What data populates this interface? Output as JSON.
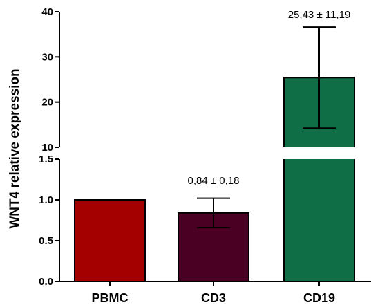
{
  "chart_data": {
    "type": "bar",
    "title": "",
    "xlabel": "",
    "ylabel": "WNT4 relative expression",
    "categories": [
      "PBMC",
      "CD3",
      "CD19"
    ],
    "values": [
      1.0,
      0.84,
      25.43
    ],
    "error": [
      null,
      0.18,
      11.19
    ],
    "annotations": [
      null,
      "0,84 ± 0,18",
      "25,43 ± 11,19"
    ],
    "colors": [
      "#a50000",
      "#4a0022",
      "#0f6e45"
    ],
    "axis_break": true,
    "lower_segment": {
      "ylim": [
        0,
        1.5
      ],
      "ticks": [
        0.0,
        0.5,
        1.0,
        1.5
      ],
      "tick_labels": [
        "0.0",
        "0.5",
        "1.0",
        "1.5"
      ]
    },
    "upper_segment": {
      "ylim": [
        10,
        40
      ],
      "ticks": [
        10,
        20,
        30,
        40
      ],
      "tick_labels": [
        "10",
        "20",
        "30",
        "40"
      ]
    }
  }
}
